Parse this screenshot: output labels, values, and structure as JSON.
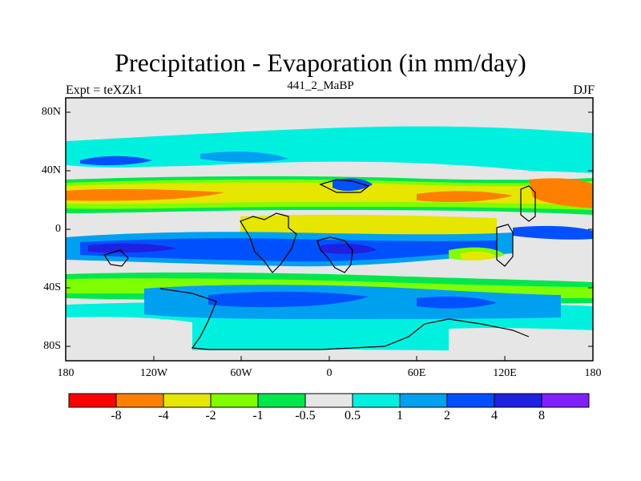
{
  "title": "Precipitation - Evaporation (in mm/day)",
  "experiment_label": "Expt = teXZk1",
  "period_label": "441_2_MaBP",
  "season_label": "DJF",
  "y_axis_labels": [
    "80N",
    "40N",
    "0",
    "40S",
    "80S"
  ],
  "x_axis_labels": [
    "180",
    "120W",
    "60W",
    "0",
    "60E",
    "120E",
    "180"
  ],
  "colorbar": {
    "labels": [
      "-8",
      "-4",
      "-2",
      "-1",
      "-0.5",
      "0.5",
      "1",
      "2",
      "4",
      "8"
    ],
    "colors": [
      "#ff0000",
      "#ff8000",
      "#e6e600",
      "#80ff00",
      "#00e64d",
      "#e6e6e6",
      "#00f0e0",
      "#00a0f0",
      "#0050ff",
      "#2020e0",
      "#8020ff"
    ]
  },
  "map_colors": {
    "neutral": "#e6e6e6",
    "light_cyan": "#00f0e0",
    "cyan": "#00a0f0",
    "blue": "#0050ff",
    "dark_blue": "#2020e0",
    "green": "#00e64d",
    "lime": "#80ff00",
    "yellow": "#e6e600",
    "orange": "#ff8000"
  }
}
